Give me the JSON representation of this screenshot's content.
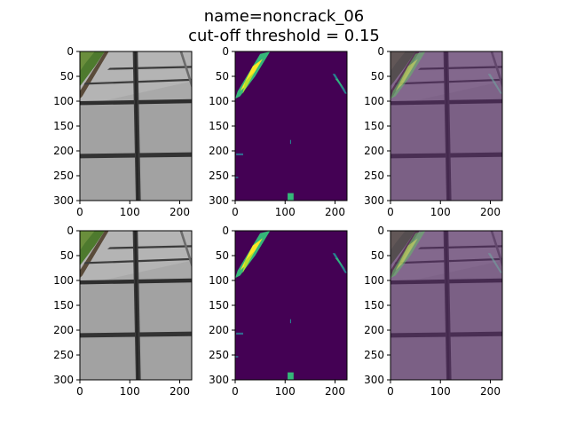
{
  "figure": {
    "title_line1": "name=noncrack_06",
    "title_line2": "cut-off threshold = 0.15"
  },
  "axes": {
    "y_ticks": [
      "0",
      "50",
      "100",
      "150",
      "200",
      "250",
      "300"
    ],
    "x_ticks": [
      "0",
      "100",
      "200"
    ],
    "y_values": [
      0,
      50,
      100,
      150,
      200,
      250,
      300
    ],
    "x_values": [
      0,
      100,
      200
    ],
    "x_range": [
      0,
      224
    ],
    "y_range": [
      0,
      300
    ]
  },
  "panels": [
    {
      "row": 0,
      "col": 0,
      "content": "original-photo"
    },
    {
      "row": 0,
      "col": 1,
      "content": "prediction-mask"
    },
    {
      "row": 0,
      "col": 2,
      "content": "overlay"
    },
    {
      "row": 1,
      "col": 0,
      "content": "original-photo"
    },
    {
      "row": 1,
      "col": 1,
      "content": "prediction-mask"
    },
    {
      "row": 1,
      "col": 2,
      "content": "overlay"
    }
  ],
  "colors": {
    "mask_background": "#440154",
    "mask_green": "#35b779",
    "mask_yellow": "#fde725",
    "mask_teal": "#26828e",
    "overlay_tint": "#6b4f7a",
    "pavement": "#a9a9a9",
    "grass": "#4e7a2e"
  }
}
